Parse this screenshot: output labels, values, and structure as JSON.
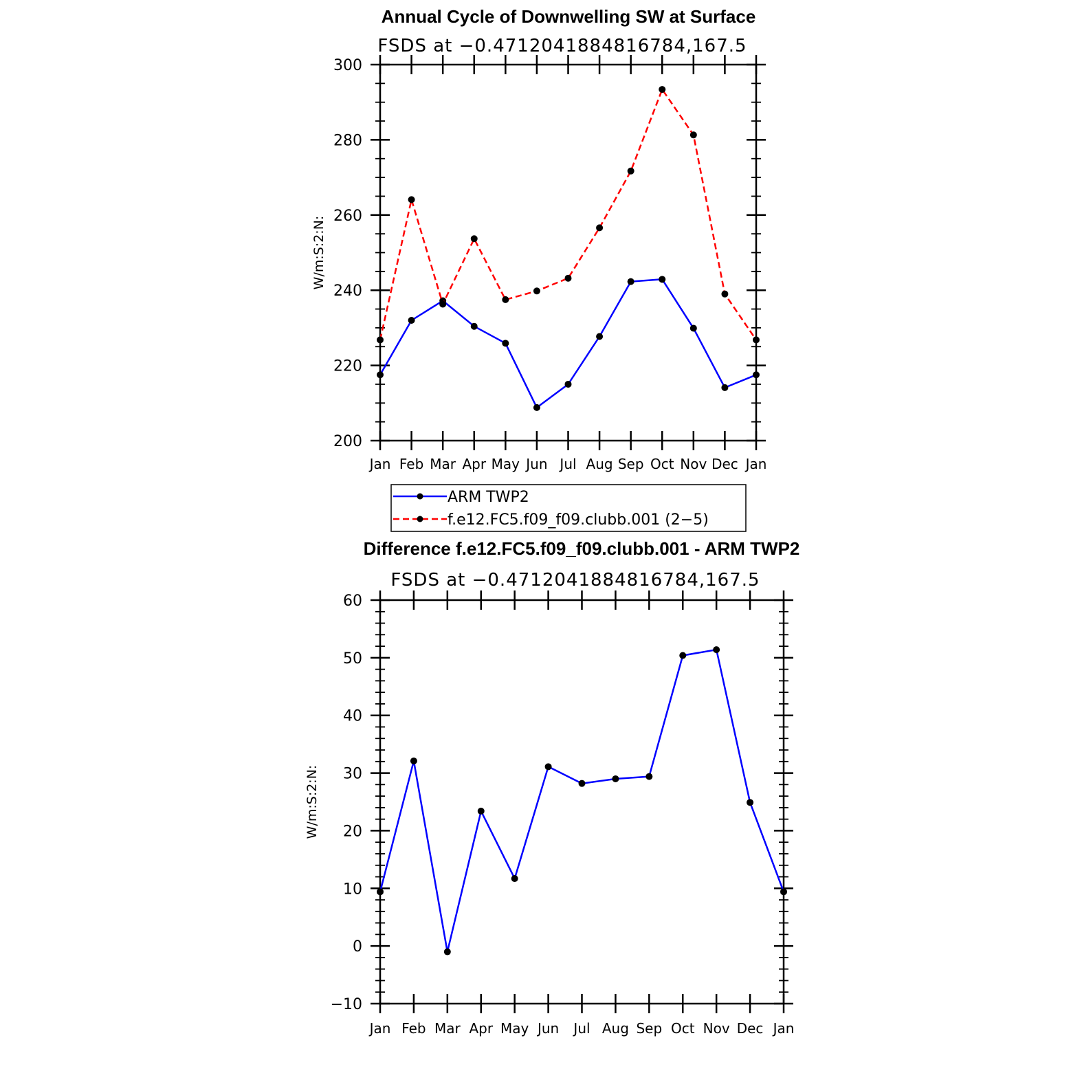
{
  "chart_data": [
    {
      "type": "line",
      "title": "Annual Cycle of Downwelling SW at Surface",
      "subtitle": "FSDS at −0.4712041884816784,167.5",
      "xlabel": "",
      "ylabel": "W/m:S:2:N:",
      "categories": [
        "Jan",
        "Feb",
        "Mar",
        "Apr",
        "May",
        "Jun",
        "Jul",
        "Aug",
        "Sep",
        "Oct",
        "Nov",
        "Dec",
        "Jan"
      ],
      "ylim": [
        200,
        300
      ],
      "yticks": [
        "200",
        "220",
        "240",
        "260",
        "280",
        "300"
      ],
      "grid": false,
      "legend_placement": "below",
      "series": [
        {
          "name": "ARM TWP2",
          "color": "#0000ff",
          "dash": "solid",
          "marker": "dot",
          "values": [
            217.5,
            232.0,
            237.2,
            230.4,
            225.9,
            208.8,
            215.0,
            227.7,
            242.3,
            242.9,
            229.9,
            214.1,
            217.5
          ]
        },
        {
          "name": "f.e12.FC5.f09_f09.clubb.001 (2−5)",
          "color": "#ff0000",
          "dash": "dashed",
          "marker": "dot",
          "values": [
            226.8,
            264.1,
            236.3,
            253.7,
            237.5,
            239.8,
            243.2,
            256.6,
            271.7,
            293.4,
            281.3,
            239.0,
            226.8
          ]
        }
      ]
    },
    {
      "type": "line",
      "title": "Difference f.e12.FC5.f09_f09.clubb.001 - ARM TWP2",
      "subtitle": "FSDS at −0.4712041884816784,167.5",
      "xlabel": "",
      "ylabel": "W/m:S:2:N:",
      "categories": [
        "Jan",
        "Feb",
        "Mar",
        "Apr",
        "May",
        "Jun",
        "Jul",
        "Aug",
        "Sep",
        "Oct",
        "Nov",
        "Dec",
        "Jan"
      ],
      "ylim": [
        -10,
        60
      ],
      "yticks": [
        "−10",
        "0",
        "10",
        "20",
        "30",
        "40",
        "50",
        "60"
      ],
      "grid": false,
      "series": [
        {
          "color": "#0000ff",
          "dash": "solid",
          "marker": "dot",
          "values": [
            9.4,
            32.1,
            -1.0,
            23.4,
            11.7,
            31.1,
            28.2,
            29.0,
            29.4,
            50.4,
            51.4,
            24.9,
            9.4
          ]
        }
      ]
    }
  ]
}
